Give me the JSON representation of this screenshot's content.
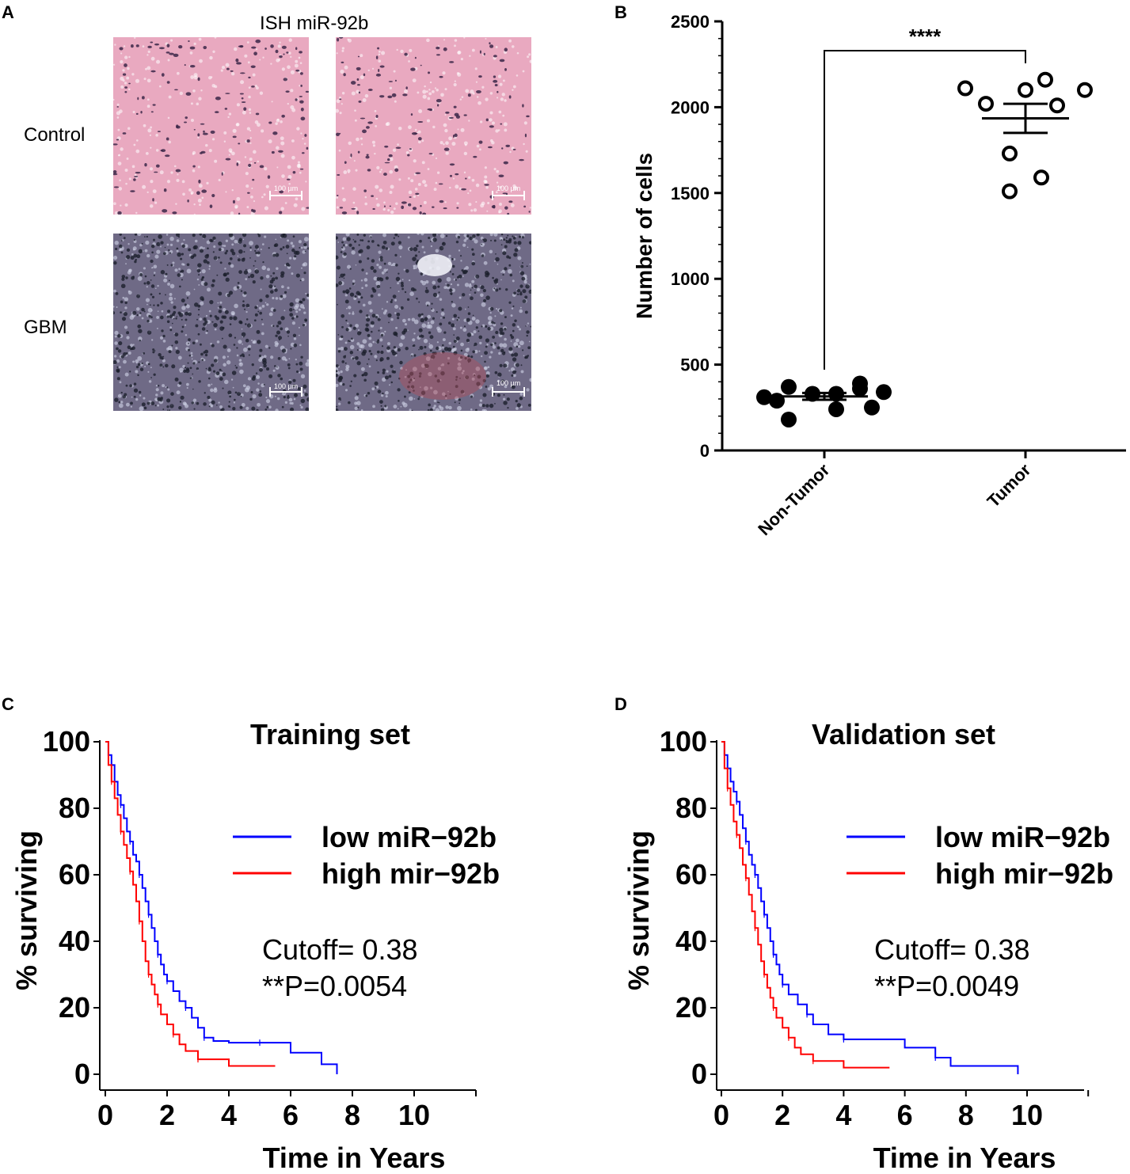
{
  "panel_a": {
    "letter": "A",
    "title": "ISH miR-92b",
    "row_labels": [
      "Control",
      "GBM"
    ],
    "scale_bar_label": "100 µm",
    "colors": {
      "control_bg": "#e9a9c0",
      "control_dot": "#3b2748",
      "gbm_bg": "#6f6a86",
      "gbm_dot": "#1c1f2c",
      "gbm_light": "#c9cce0"
    }
  },
  "chart_data": [
    {
      "panel": "B",
      "type": "scatter",
      "title": "",
      "xlabel": "",
      "ylabel": "Number of cells",
      "categories": [
        "Non-Tumor",
        "Tumor"
      ],
      "ylim": [
        0,
        2500
      ],
      "yticks": [
        0,
        500,
        1000,
        1500,
        2000,
        2500
      ],
      "series": [
        {
          "name": "Non-Tumor",
          "marker": "filled-circle",
          "values": [
            310,
            370,
            180,
            330,
            330,
            240,
            360,
            290,
            390,
            250,
            340
          ],
          "mean": 315,
          "sem": 20
        },
        {
          "name": "Tumor",
          "marker": "open-circle",
          "values": [
            2110,
            2020,
            2100,
            2160,
            2100,
            1730,
            1510,
            1590,
            2010
          ],
          "mean": 1935,
          "sem": 85
        }
      ],
      "annotation": {
        "text": "****",
        "between": [
          "Non-Tumor",
          "Tumor"
        ]
      }
    },
    {
      "panel": "C",
      "type": "line",
      "title": "Training set",
      "xlabel": "Time in Years",
      "ylabel": "% surviving",
      "xlim": [
        0,
        12
      ],
      "ylim": [
        0,
        100
      ],
      "xticks": [
        0,
        2,
        4,
        6,
        8,
        10
      ],
      "yticks": [
        0,
        20,
        40,
        60,
        80,
        100
      ],
      "series": [
        {
          "name": "low miR−92b",
          "color": "#0000ff",
          "x": [
            0,
            0.1,
            0.2,
            0.3,
            0.4,
            0.5,
            0.6,
            0.7,
            0.8,
            0.9,
            1.0,
            1.1,
            1.2,
            1.3,
            1.4,
            1.5,
            1.6,
            1.7,
            1.8,
            1.9,
            2.0,
            2.2,
            2.4,
            2.6,
            2.8,
            3.0,
            3.2,
            3.5,
            4.0,
            5.0,
            6.0,
            7.0,
            7.5
          ],
          "y": [
            100,
            96,
            93,
            88,
            84,
            81,
            77,
            73,
            70,
            66,
            64,
            60,
            56,
            52,
            48,
            44,
            40,
            36,
            33,
            30,
            28,
            25,
            22,
            20,
            17,
            14,
            11,
            10,
            9.5,
            9.5,
            6.5,
            3,
            0
          ]
        },
        {
          "name": "high mir−92b",
          "color": "#ff0000",
          "x": [
            0,
            0.1,
            0.2,
            0.3,
            0.4,
            0.5,
            0.6,
            0.7,
            0.8,
            0.9,
            1.0,
            1.1,
            1.2,
            1.3,
            1.4,
            1.5,
            1.6,
            1.7,
            1.8,
            2.0,
            2.2,
            2.4,
            2.6,
            3.0,
            4.0,
            5.5
          ],
          "y": [
            100,
            93,
            88,
            83,
            78,
            73,
            69,
            65,
            61,
            57,
            52,
            46,
            40,
            34,
            30,
            27,
            24,
            21,
            18,
            15,
            12,
            9,
            7,
            4.5,
            2.5,
            2.5
          ]
        }
      ],
      "annotations": [
        "Cutoff= 0.38",
        "**P=0.0054"
      ]
    },
    {
      "panel": "D",
      "type": "line",
      "title": "Validation set",
      "xlabel": "Time in Years",
      "ylabel": "% surviving",
      "xlim": [
        0,
        12
      ],
      "ylim": [
        0,
        100
      ],
      "xticks": [
        0,
        2,
        4,
        6,
        8,
        10
      ],
      "yticks": [
        0,
        20,
        40,
        60,
        80,
        100
      ],
      "series": [
        {
          "name": "low miR−92b",
          "color": "#0000ff",
          "x": [
            0,
            0.1,
            0.2,
            0.3,
            0.4,
            0.5,
            0.6,
            0.7,
            0.8,
            0.9,
            1.0,
            1.1,
            1.2,
            1.3,
            1.4,
            1.5,
            1.6,
            1.7,
            1.8,
            1.9,
            2.0,
            2.2,
            2.5,
            2.8,
            3.0,
            3.5,
            4.0,
            5.0,
            6.0,
            7.0,
            7.5,
            9.5,
            9.7
          ],
          "y": [
            100,
            96,
            92,
            88,
            85,
            82,
            78,
            74,
            70,
            66,
            63,
            60,
            56,
            52,
            48,
            44,
            40,
            36,
            33,
            30,
            27,
            24,
            21,
            18,
            15,
            12,
            10.5,
            10.5,
            8,
            5,
            2.5,
            2.5,
            0
          ]
        },
        {
          "name": "high mir−92b",
          "color": "#ff0000",
          "x": [
            0,
            0.1,
            0.2,
            0.3,
            0.4,
            0.5,
            0.6,
            0.7,
            0.8,
            0.9,
            1.0,
            1.1,
            1.2,
            1.3,
            1.4,
            1.5,
            1.6,
            1.7,
            1.8,
            2.0,
            2.2,
            2.4,
            2.6,
            3.0,
            4.0,
            5.5
          ],
          "y": [
            100,
            92,
            86,
            81,
            76,
            72,
            68,
            63,
            59,
            54,
            49,
            44,
            39,
            34,
            30,
            26,
            23,
            20,
            17,
            14,
            11,
            8,
            6,
            4,
            2,
            2
          ]
        }
      ],
      "annotations": [
        "Cutoff= 0.38",
        "**P=0.0049"
      ]
    }
  ],
  "panel_letters": {
    "b": "B",
    "c": "C",
    "d": "D"
  }
}
